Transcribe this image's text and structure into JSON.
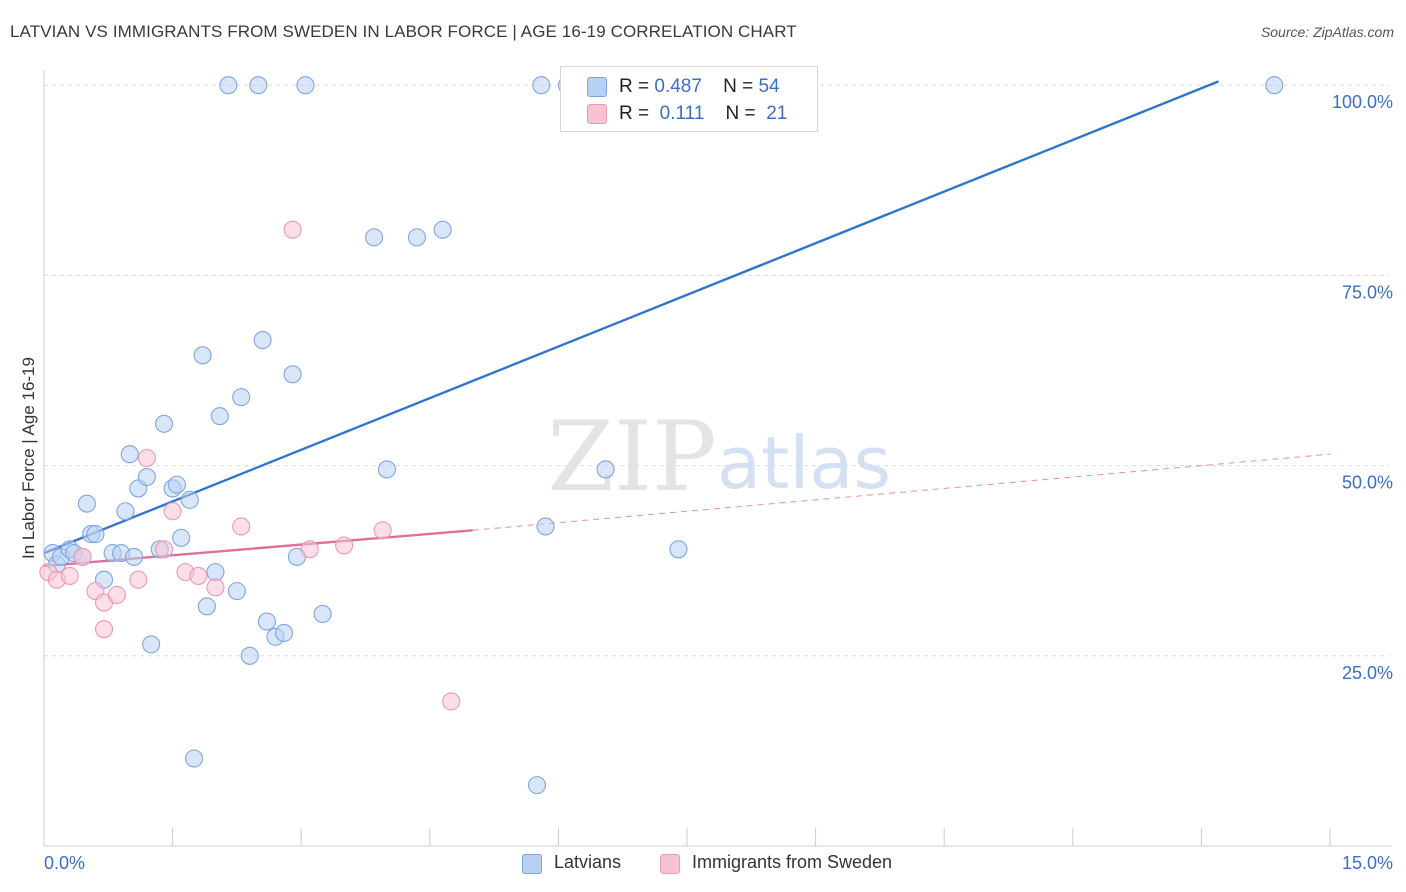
{
  "title": "LATVIAN VS IMMIGRANTS FROM SWEDEN IN LABOR FORCE | AGE 16-19 CORRELATION CHART",
  "source": "Source: ZipAtlas.com",
  "watermark": {
    "zip": "ZIP",
    "atlas": "atlas"
  },
  "colors": {
    "blue_fill": "#b8d1f3",
    "blue_stroke": "#7ea6e0",
    "blue_line": "#2f74d0",
    "pink_fill": "#f7c3d4",
    "pink_stroke": "#e99ab4",
    "pink_line": "#e0709a",
    "tick_label": "#3b6fc4",
    "grid": "#dcdcdc"
  },
  "legend": {
    "r_label": "R =",
    "n_label": "N =",
    "items": [
      {
        "r": "0.487",
        "n": "54"
      },
      {
        "r": "0.111",
        "n": "21"
      }
    ]
  },
  "chart_data": {
    "type": "scatter",
    "title": "LATVIAN VS IMMIGRANTS FROM SWEDEN IN LABOR FORCE | AGE 16-19 CORRELATION CHART",
    "xlabel": "",
    "ylabel": "In Labor Force | Age 16-19",
    "xlim": [
      0,
      15
    ],
    "ylim": [
      0,
      102
    ],
    "x_tick_labels": [
      {
        "value": 0,
        "label": "0.0%"
      },
      {
        "value": 15,
        "label": "15.0%"
      }
    ],
    "y_tick_labels": [
      {
        "value": 25,
        "label": "25.0%"
      },
      {
        "value": 50,
        "label": "50.0%"
      },
      {
        "value": 75,
        "label": "75.0%"
      },
      {
        "value": 100,
        "label": "100.0%"
      }
    ],
    "x_minor_ticks": [
      0,
      1.5,
      3,
      4.5,
      6,
      7.5,
      9,
      10.5,
      12,
      13.5,
      15
    ],
    "grid": true,
    "legend_position": "top-center",
    "series": [
      {
        "name": "Latvians",
        "color": "#b8d1f3",
        "r": 0.487,
        "n": 54,
        "trend": {
          "x": [
            0,
            13.7
          ],
          "y": [
            38.5,
            100.5
          ],
          "style": "solid"
        },
        "points": [
          [
            0.1,
            38.5
          ],
          [
            0.15,
            37
          ],
          [
            0.2,
            38
          ],
          [
            0.3,
            39
          ],
          [
            0.35,
            38.5
          ],
          [
            0.45,
            38
          ],
          [
            0.5,
            45
          ],
          [
            0.55,
            41
          ],
          [
            0.6,
            41
          ],
          [
            0.7,
            35
          ],
          [
            0.8,
            38.5
          ],
          [
            0.9,
            38.5
          ],
          [
            0.95,
            44
          ],
          [
            1.0,
            51.5
          ],
          [
            1.05,
            38
          ],
          [
            1.1,
            47
          ],
          [
            1.2,
            48.5
          ],
          [
            1.25,
            26.5
          ],
          [
            1.35,
            39
          ],
          [
            1.4,
            55.5
          ],
          [
            1.5,
            47
          ],
          [
            1.55,
            47.5
          ],
          [
            1.6,
            40.5
          ],
          [
            1.7,
            45.5
          ],
          [
            1.75,
            11.5
          ],
          [
            1.85,
            64.5
          ],
          [
            1.9,
            31.5
          ],
          [
            2.0,
            36
          ],
          [
            2.05,
            56.5
          ],
          [
            2.15,
            100
          ],
          [
            2.25,
            33.5
          ],
          [
            2.3,
            59
          ],
          [
            2.4,
            25
          ],
          [
            2.5,
            100
          ],
          [
            2.55,
            66.5
          ],
          [
            2.6,
            29.5
          ],
          [
            2.7,
            27.5
          ],
          [
            2.8,
            28
          ],
          [
            2.9,
            62
          ],
          [
            2.95,
            38
          ],
          [
            3.05,
            100
          ],
          [
            3.25,
            30.5
          ],
          [
            3.85,
            80
          ],
          [
            4.0,
            49.5
          ],
          [
            4.35,
            80
          ],
          [
            4.65,
            81
          ],
          [
            5.8,
            100
          ],
          [
            5.85,
            42
          ],
          [
            6.1,
            100
          ],
          [
            6.55,
            49.5
          ],
          [
            7.4,
            39
          ],
          [
            8.9,
            100
          ],
          [
            14.35,
            100
          ],
          [
            5.75,
            8
          ]
        ]
      },
      {
        "name": "Immigrants from Sweden",
        "color": "#f7c3d4",
        "r": 0.111,
        "n": 21,
        "trend": {
          "x": [
            0,
            5.0
          ],
          "y": [
            36.8,
            41.5
          ],
          "style": "solid",
          "extension": {
            "x": [
              5.0,
              15.0
            ],
            "y": [
              41.5,
              51.5
            ],
            "style": "dashed"
          }
        },
        "points": [
          [
            0.05,
            36
          ],
          [
            0.15,
            35
          ],
          [
            0.3,
            35.5
          ],
          [
            0.45,
            38
          ],
          [
            0.6,
            33.5
          ],
          [
            0.7,
            32
          ],
          [
            0.7,
            28.5
          ],
          [
            0.85,
            33
          ],
          [
            1.1,
            35
          ],
          [
            1.2,
            51
          ],
          [
            1.4,
            39
          ],
          [
            1.5,
            44
          ],
          [
            1.65,
            36
          ],
          [
            1.8,
            35.5
          ],
          [
            2.0,
            34
          ],
          [
            2.3,
            42
          ],
          [
            2.9,
            81
          ],
          [
            3.1,
            39
          ],
          [
            3.5,
            39.5
          ],
          [
            3.95,
            41.5
          ],
          [
            4.75,
            19
          ]
        ]
      }
    ]
  }
}
